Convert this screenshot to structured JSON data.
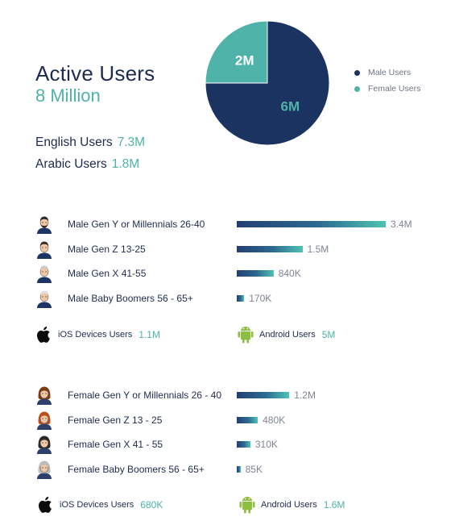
{
  "header": {
    "title": "Active Users",
    "total": "8 Million"
  },
  "languages": [
    {
      "label": "English Users",
      "value": "7.3M"
    },
    {
      "label": "Arabic Users",
      "value": "1.8M"
    }
  ],
  "colors": {
    "male": "#1b3361",
    "female": "#4fb3a9",
    "text": "#1d2b4f",
    "muted": "#7d8494"
  },
  "chart_data": [
    {
      "type": "pie",
      "slices": [
        {
          "name": "Male Users",
          "value": 6,
          "label": "6M"
        },
        {
          "name": "Female Users",
          "value": 2,
          "label": "2M"
        }
      ],
      "legend_position": "right"
    },
    {
      "type": "bar",
      "orientation": "horizontal",
      "categories": [
        "Male Gen Y or Millennials 26-40",
        "Male Gen Z 13-25",
        "Male Gen X 41-55",
        "Male Baby Boomers 56 - 65+"
      ],
      "values": [
        3400000,
        1500000,
        840000,
        170000
      ],
      "value_labels": [
        "3.4M",
        "1.5M",
        "840K",
        "170K"
      ]
    },
    {
      "type": "bar",
      "orientation": "horizontal",
      "categories": [
        "Female Gen Y or Millennials 26 - 40",
        "Female Gen Z 13 - 25",
        "Female Gen X 41 - 55",
        "Female Baby Boomers 56 - 65+"
      ],
      "values": [
        1200000,
        480000,
        310000,
        85000
      ],
      "value_labels": [
        "1.2M",
        "480K",
        "310K",
        "85K"
      ]
    }
  ],
  "male_devices": {
    "ios": {
      "icon": "apple-icon",
      "label": "iOS Devices Users",
      "value": "1.1M"
    },
    "android": {
      "icon": "android-icon",
      "label": "Android Users",
      "value": "5M"
    }
  },
  "female_devices": {
    "ios": {
      "icon": "apple-icon",
      "label": "iOS Devices Users",
      "value": "680K"
    },
    "android": {
      "icon": "android-icon",
      "label": "Android Users",
      "value": "1.6M"
    }
  }
}
